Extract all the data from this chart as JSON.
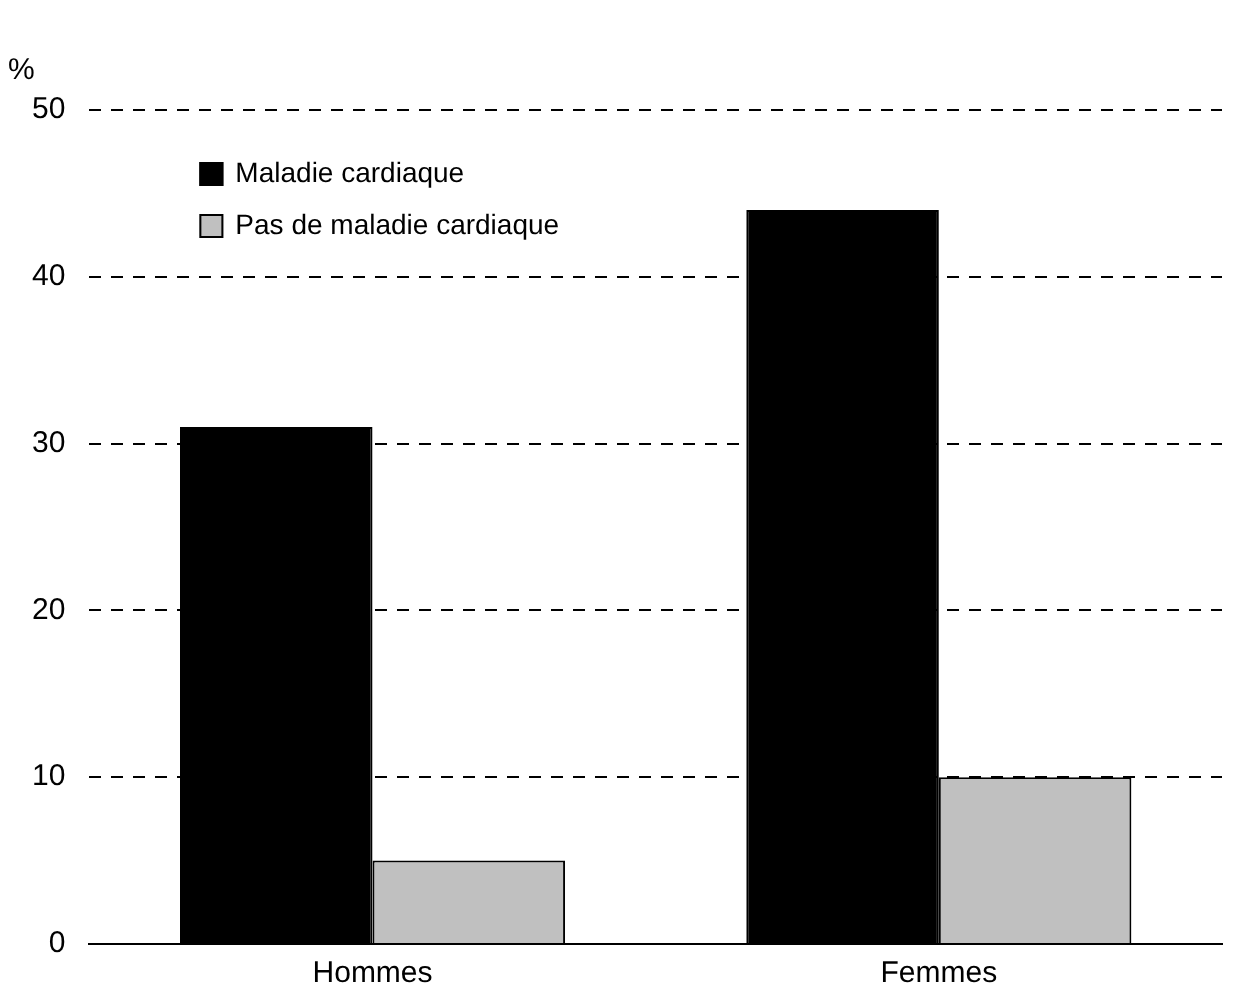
{
  "chart_data": {
    "type": "bar",
    "ylabel": "%",
    "categories": [
      "Hommes",
      "Femmes"
    ],
    "series": [
      {
        "name": "Maladie cardiaque",
        "color": "#000000",
        "values": [
          31,
          44
        ]
      },
      {
        "name": "Pas de maladie cardiaque",
        "color": "#c0c0c0",
        "values": [
          5,
          10
        ]
      }
    ],
    "ylim": [
      0,
      50
    ],
    "yticks": [
      0,
      10,
      20,
      30,
      40,
      50
    ],
    "grid": "y",
    "legend": "top left"
  }
}
